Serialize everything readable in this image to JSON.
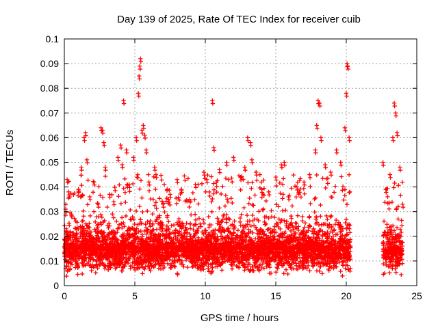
{
  "chart_data": {
    "type": "scatter",
    "title": "Day 139 of 2025, Rate Of TEC Index for receiver cuib",
    "xlabel": "GPS time / hours",
    "ylabel": "ROTI / TECUs",
    "xlim": [
      0,
      25
    ],
    "ylim": [
      0,
      0.1
    ],
    "xticks": [
      0,
      5,
      10,
      15,
      20,
      25
    ],
    "xtick_labels": [
      "0",
      "5",
      "10",
      "15",
      "20",
      "25"
    ],
    "yticks": [
      0,
      0.01,
      0.02,
      0.03,
      0.04,
      0.05,
      0.06,
      0.07,
      0.08,
      0.09,
      0.1
    ],
    "ytick_labels": [
      "0",
      "0.01",
      "0.02",
      "0.03",
      "0.04",
      "0.05",
      "0.06",
      "0.07",
      "0.08",
      "0.09",
      "0.1"
    ],
    "grid": true,
    "marker": "+",
    "color": "#ff0000",
    "series": [
      {
        "points": [
          [
            0.1,
            0.031
          ],
          [
            0.2,
            0.043
          ],
          [
            0.3,
            0.038
          ],
          [
            0.5,
            0.029
          ],
          [
            1.0,
            0.039
          ],
          [
            1.2,
            0.048
          ],
          [
            1.4,
            0.06
          ],
          [
            1.5,
            0.062
          ],
          [
            1.6,
            0.051
          ],
          [
            1.8,
            0.036
          ],
          [
            2.1,
            0.042
          ],
          [
            2.4,
            0.033
          ],
          [
            2.6,
            0.064
          ],
          [
            2.7,
            0.063
          ],
          [
            2.8,
            0.058
          ],
          [
            2.9,
            0.048
          ],
          [
            3.2,
            0.037
          ],
          [
            3.5,
            0.034
          ],
          [
            3.8,
            0.052
          ],
          [
            4.0,
            0.057
          ],
          [
            4.1,
            0.049
          ],
          [
            4.2,
            0.075
          ],
          [
            4.4,
            0.055
          ],
          [
            4.6,
            0.041
          ],
          [
            4.9,
            0.052
          ],
          [
            5.1,
            0.06
          ],
          [
            5.2,
            0.045
          ],
          [
            5.25,
            0.078
          ],
          [
            5.3,
            0.085
          ],
          [
            5.35,
            0.089
          ],
          [
            5.4,
            0.092
          ],
          [
            5.5,
            0.063
          ],
          [
            5.6,
            0.065
          ],
          [
            5.7,
            0.061
          ],
          [
            5.8,
            0.055
          ],
          [
            6.0,
            0.042
          ],
          [
            6.4,
            0.048
          ],
          [
            6.5,
            0.045
          ],
          [
            7.0,
            0.033
          ],
          [
            7.5,
            0.037
          ],
          [
            8.0,
            0.043
          ],
          [
            8.3,
            0.039
          ],
          [
            8.9,
            0.035
          ],
          [
            9.3,
            0.041
          ],
          [
            9.9,
            0.046
          ],
          [
            10.1,
            0.043
          ],
          [
            10.5,
            0.075
          ],
          [
            10.6,
            0.056
          ],
          [
            11.0,
            0.047
          ],
          [
            11.5,
            0.05
          ],
          [
            12.0,
            0.052
          ],
          [
            12.5,
            0.044
          ],
          [
            12.8,
            0.048
          ],
          [
            13.0,
            0.06
          ],
          [
            13.2,
            0.058
          ],
          [
            13.3,
            0.051
          ],
          [
            13.6,
            0.046
          ],
          [
            14.0,
            0.039
          ],
          [
            14.5,
            0.038
          ],
          [
            15.0,
            0.044
          ],
          [
            15.4,
            0.049
          ],
          [
            15.6,
            0.05
          ],
          [
            15.9,
            0.036
          ],
          [
            16.5,
            0.04
          ],
          [
            17.0,
            0.042
          ],
          [
            17.4,
            0.045
          ],
          [
            17.8,
            0.055
          ],
          [
            17.9,
            0.065
          ],
          [
            18.0,
            0.075
          ],
          [
            18.1,
            0.074
          ],
          [
            18.2,
            0.06
          ],
          [
            18.5,
            0.049
          ],
          [
            18.9,
            0.046
          ],
          [
            19.3,
            0.055
          ],
          [
            19.6,
            0.05
          ],
          [
            19.9,
            0.064
          ],
          [
            20.0,
            0.078
          ],
          [
            20.05,
            0.09
          ],
          [
            20.1,
            0.089
          ],
          [
            20.2,
            0.06
          ],
          [
            22.6,
            0.05
          ],
          [
            22.8,
            0.039
          ],
          [
            23.1,
            0.045
          ],
          [
            23.3,
            0.06
          ],
          [
            23.4,
            0.074
          ],
          [
            23.5,
            0.07
          ],
          [
            23.6,
            0.062
          ],
          [
            23.8,
            0.048
          ],
          [
            24.0,
            0.033
          ]
        ],
        "dense_bands": [
          {
            "x_start": 0,
            "x_end": 20.3,
            "y_low": 0.003,
            "y_high": 0.036,
            "y_mean": 0.015
          },
          {
            "x_start": 22.6,
            "x_end": 24.0,
            "y_low": 0.003,
            "y_high": 0.034,
            "y_mean": 0.014
          }
        ]
      }
    ]
  }
}
